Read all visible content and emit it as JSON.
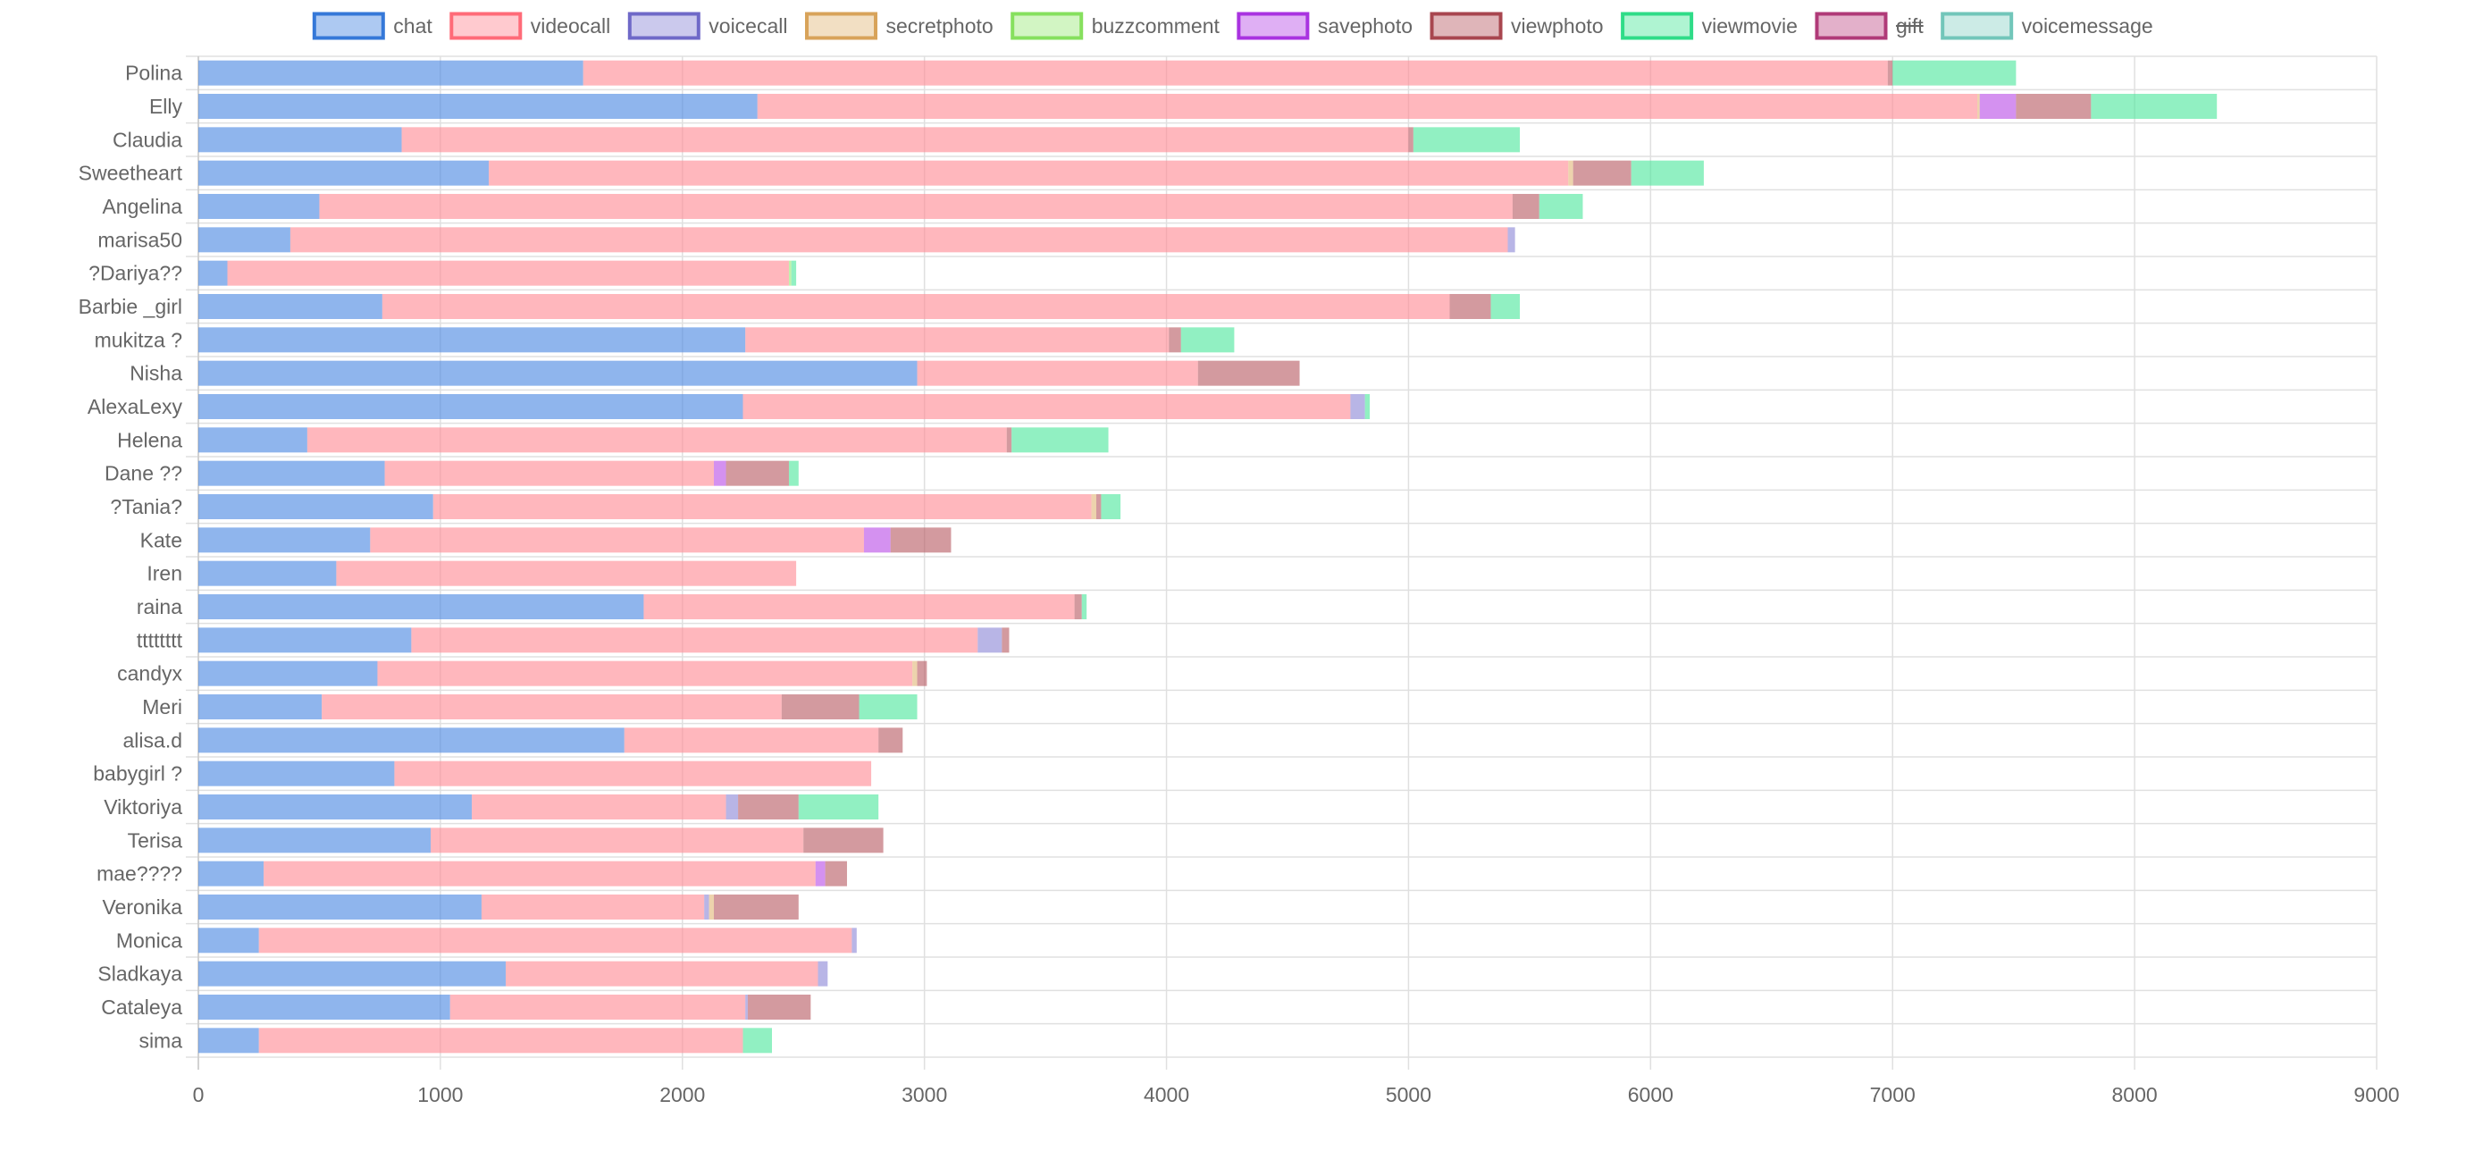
{
  "chart_data": {
    "type": "bar",
    "orientation": "horizontal",
    "stacked": true,
    "xlim": [
      0,
      9000
    ],
    "xticks": [
      0,
      1000,
      2000,
      3000,
      4000,
      5000,
      6000,
      7000,
      8000,
      9000
    ],
    "grid": true,
    "legend_position": "top",
    "categories": [
      "Polina",
      "Elly",
      "Claudia",
      "Sweetheart",
      "Angelina",
      "marisa50",
      "?Dariya??",
      "Barbie _girl",
      "mukitza ?",
      "Nisha",
      "AlexaLexy",
      "Helena",
      "Dane ??",
      "?Tania?",
      "Kate",
      "Iren",
      "raina",
      "tttttttt",
      "candyx",
      "Meri",
      "alisa.d",
      "babygirl ?",
      "Viktoriya",
      "Terisa",
      "mae????",
      "Veronika",
      "Monica",
      "Sladkaya",
      "Cataleya",
      "sima"
    ],
    "series": [
      {
        "name": "chat",
        "color": "#4a88e2",
        "border": "#3578d8",
        "hidden": false,
        "values": [
          1590,
          2310,
          840,
          1200,
          500,
          380,
          120,
          760,
          2260,
          2970,
          2250,
          450,
          770,
          970,
          710,
          570,
          1840,
          880,
          740,
          510,
          1760,
          810,
          1130,
          960,
          270,
          1170,
          250,
          1270,
          1040,
          250
        ]
      },
      {
        "name": "videocall",
        "color": "#ff8a94",
        "border": "#ff6b78",
        "hidden": false,
        "values": [
          5390,
          5040,
          4160,
          4460,
          4930,
          5030,
          2320,
          4410,
          1750,
          1160,
          2510,
          2890,
          1360,
          2720,
          2040,
          1900,
          1780,
          2340,
          2210,
          1900,
          1050,
          1970,
          1050,
          1540,
          2280,
          920,
          2450,
          1290,
          1220,
          2000
        ]
      },
      {
        "name": "voicecall",
        "color": "#8c87d6",
        "border": "#6f69c8",
        "hidden": false,
        "values": [
          0,
          0,
          0,
          0,
          0,
          30,
          0,
          0,
          0,
          0,
          60,
          0,
          0,
          0,
          0,
          0,
          0,
          100,
          0,
          0,
          0,
          0,
          50,
          0,
          0,
          20,
          20,
          40,
          10,
          0
        ]
      },
      {
        "name": "secretphoto",
        "color": "#e2b87a",
        "border": "#d8a35a",
        "hidden": false,
        "values": [
          0,
          10,
          0,
          20,
          0,
          0,
          0,
          0,
          0,
          0,
          0,
          0,
          0,
          20,
          0,
          0,
          0,
          0,
          20,
          0,
          0,
          0,
          0,
          0,
          0,
          20,
          0,
          0,
          0,
          0
        ]
      },
      {
        "name": "buzzcomment",
        "color": "#9be87a",
        "border": "#86e05e",
        "hidden": false,
        "values": [
          0,
          0,
          0,
          0,
          0,
          0,
          10,
          0,
          0,
          0,
          0,
          0,
          0,
          0,
          0,
          0,
          0,
          0,
          0,
          0,
          0,
          0,
          0,
          0,
          0,
          0,
          0,
          0,
          0,
          0
        ]
      },
      {
        "name": "savephoto",
        "color": "#b94ee6",
        "border": "#a933e0",
        "hidden": false,
        "values": [
          0,
          150,
          0,
          0,
          0,
          0,
          0,
          0,
          0,
          0,
          0,
          0,
          50,
          0,
          110,
          0,
          0,
          0,
          0,
          0,
          0,
          0,
          0,
          0,
          40,
          0,
          0,
          0,
          0,
          0
        ]
      },
      {
        "name": "viewphoto",
        "color": "#b85c64",
        "border": "#a8464f",
        "hidden": false,
        "values": [
          20,
          310,
          20,
          240,
          110,
          0,
          0,
          170,
          50,
          420,
          0,
          20,
          260,
          20,
          250,
          0,
          30,
          30,
          40,
          320,
          100,
          0,
          250,
          330,
          90,
          350,
          0,
          0,
          260,
          0
        ]
      },
      {
        "name": "viewmovie",
        "color": "#4ee69c",
        "border": "#2fdc88",
        "hidden": false,
        "values": [
          510,
          520,
          440,
          300,
          180,
          0,
          20,
          120,
          220,
          0,
          20,
          400,
          40,
          80,
          0,
          0,
          20,
          0,
          0,
          240,
          0,
          0,
          330,
          0,
          0,
          0,
          0,
          0,
          0,
          120
        ]
      },
      {
        "name": "gift",
        "color": "#c0508a",
        "border": "#b03a78",
        "hidden": true,
        "values": [
          0,
          0,
          0,
          0,
          0,
          0,
          0,
          0,
          0,
          0,
          0,
          0,
          0,
          0,
          0,
          0,
          0,
          0,
          0,
          0,
          0,
          0,
          0,
          0,
          0,
          0,
          0,
          0,
          0,
          0
        ]
      },
      {
        "name": "voicemessage",
        "color": "#8ed2c8",
        "border": "#72c6ba",
        "hidden": false,
        "values": [
          0,
          0,
          0,
          0,
          0,
          0,
          0,
          0,
          0,
          0,
          0,
          0,
          0,
          0,
          0,
          0,
          0,
          0,
          0,
          0,
          0,
          0,
          0,
          0,
          0,
          0,
          0,
          0,
          0,
          0
        ]
      }
    ]
  }
}
